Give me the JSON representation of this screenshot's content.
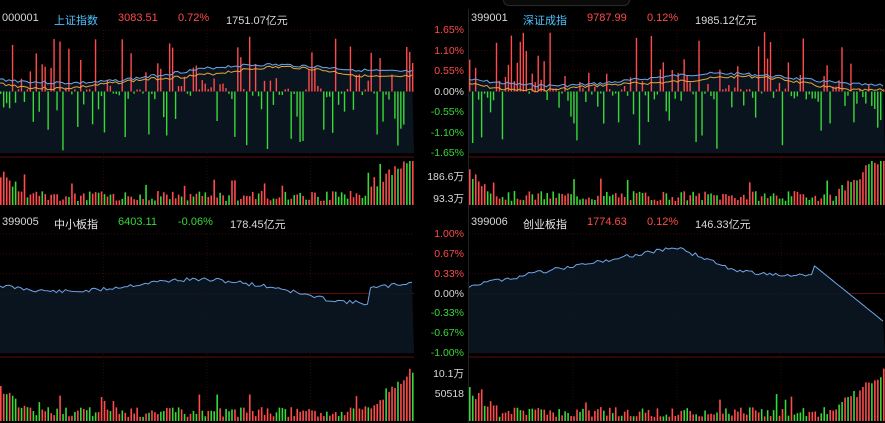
{
  "panels": [
    {
      "code": "000001",
      "name": "上证指数",
      "price": "3083.51",
      "change": "0.72%",
      "amount": "1751.07亿元",
      "name_style": "blue",
      "change_dir": "up",
      "y_labels": [
        "1.65%",
        "1.10%",
        "0.55%",
        "0.00%",
        "-0.55%",
        "-1.10%",
        "-1.65%"
      ],
      "vol_labels": [
        "186.6万",
        "93.3万"
      ]
    },
    {
      "code": "399001",
      "name": "深证成指",
      "price": "9787.99",
      "change": "0.12%",
      "amount": "1985.12亿元",
      "name_style": "blue",
      "change_dir": "up",
      "y_labels": [],
      "vol_labels": []
    },
    {
      "code": "399005",
      "name": "中小板指",
      "price": "6403.11",
      "change": "-0.06%",
      "amount": "178.45亿元",
      "name_style": "white",
      "change_dir": "down",
      "y_labels": [
        "1.00%",
        "0.67%",
        "0.33%",
        "0.00%",
        "-0.33%",
        "-0.67%",
        "-1.00%"
      ],
      "vol_labels": [
        "10.1万",
        "50518"
      ]
    },
    {
      "code": "399006",
      "name": "创业板指",
      "price": "1774.63",
      "change": "0.12%",
      "amount": "146.33亿元",
      "name_style": "white",
      "change_dir": "up",
      "y_labels": [],
      "vol_labels": []
    }
  ],
  "colors": {
    "up": "#ff4b4b",
    "down": "#38d838",
    "line": "#6ea6e8",
    "avg": "#e6a53c",
    "grid": "#3a0000",
    "area": "#0d1a26"
  }
}
